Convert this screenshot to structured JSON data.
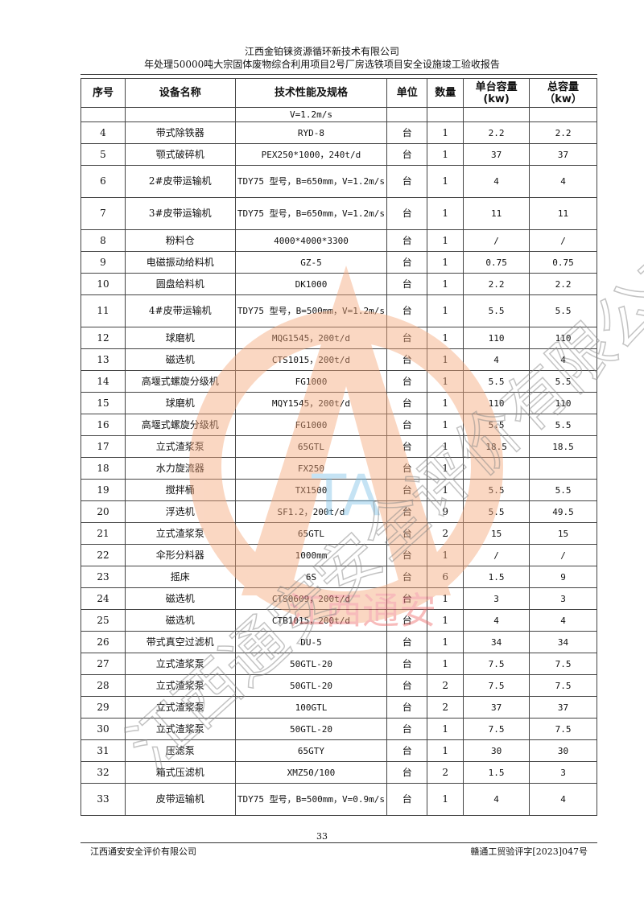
{
  "header": {
    "company": "江西金铂铼资源循环新技术有限公司",
    "report_title": "年处理50000吨大宗固体废物综合利用项目2号厂房选铁项目安全设施竣工验收报告"
  },
  "table": {
    "columns": [
      "序号",
      "设备名称",
      "技术性能及规格",
      "单位",
      "数量",
      "单台容量\n(kw)",
      "总容量\n（kw）"
    ],
    "continued_spec": "V=1.2m/s",
    "rows": [
      [
        "4",
        "带式除铁器",
        "RYD-8",
        "台",
        "1",
        "2.2",
        "2.2"
      ],
      [
        "5",
        "颚式破碎机",
        "PEX250*1000，240t/d",
        "台",
        "1",
        "37",
        "37"
      ],
      [
        "6",
        "2#皮带运输机",
        "TDY75 型号，B=650mm，V=1.2m/s",
        "台",
        "1",
        "4",
        "4"
      ],
      [
        "7",
        "3#皮带运输机",
        "TDY75 型号，B=650mm，V=1.2m/s",
        "台",
        "1",
        "11",
        "11"
      ],
      [
        "8",
        "粉料仓",
        "4000*4000*3300",
        "台",
        "1",
        "/",
        "/"
      ],
      [
        "9",
        "电磁振动给料机",
        "GZ-5",
        "台",
        "1",
        "0.75",
        "0.75"
      ],
      [
        "10",
        "圆盘给料机",
        "DK1000",
        "台",
        "1",
        "2.2",
        "2.2"
      ],
      [
        "11",
        "4#皮带运输机",
        "TDY75 型号，B=500mm，V=1.2m/s",
        "台",
        "1",
        "5.5",
        "5.5"
      ],
      [
        "12",
        "球磨机",
        "MQG1545，200t/d",
        "台",
        "1",
        "110",
        "110"
      ],
      [
        "13",
        "磁选机",
        "CTS1015，200t/d",
        "台",
        "1",
        "4",
        "4"
      ],
      [
        "14",
        "高堰式螺旋分级机",
        "FG1000",
        "台",
        "1",
        "5.5",
        "5.5"
      ],
      [
        "15",
        "球磨机",
        "MQY1545，200t/d",
        "台",
        "1",
        "110",
        "110"
      ],
      [
        "16",
        "高堰式螺旋分级机",
        "FG1000",
        "台",
        "1",
        "5.5",
        "5.5"
      ],
      [
        "17",
        "立式渣浆泵",
        "65GTL",
        "台",
        "1",
        "18.5",
        "18.5"
      ],
      [
        "18",
        "水力旋流器",
        "FX250",
        "台",
        "1",
        "",
        ""
      ],
      [
        "19",
        "搅拌桶",
        "TX1500",
        "台",
        "1",
        "5.5",
        "5.5"
      ],
      [
        "20",
        "浮选机",
        "SF1.2，200t/d",
        "台",
        "9",
        "5.5",
        "49.5"
      ],
      [
        "21",
        "立式渣浆泵",
        "65GTL",
        "台",
        "2",
        "15",
        "15"
      ],
      [
        "22",
        "伞形分料器",
        "1000mm",
        "台",
        "1",
        "/",
        "/"
      ],
      [
        "23",
        "摇床",
        "6S",
        "台",
        "6",
        "1.5",
        "9"
      ],
      [
        "24",
        "磁选机",
        "CTS0609，200t/d",
        "台",
        "1",
        "3",
        "3"
      ],
      [
        "25",
        "磁选机",
        "CTB1015，200t/d",
        "台",
        "1",
        "4",
        "4"
      ],
      [
        "26",
        "带式真空过滤机",
        "DU-5",
        "台",
        "1",
        "34",
        "34"
      ],
      [
        "27",
        "立式渣浆泵",
        "50GTL-20",
        "台",
        "1",
        "7.5",
        "7.5"
      ],
      [
        "28",
        "立式渣浆泵",
        "50GTL-20",
        "台",
        "2",
        "7.5",
        "7.5"
      ],
      [
        "29",
        "立式渣浆泵",
        "100GTL",
        "台",
        "2",
        "37",
        "37"
      ],
      [
        "30",
        "立式渣浆泵",
        "50GTL-20",
        "台",
        "1",
        "7.5",
        "7.5"
      ],
      [
        "31",
        "压滤泵",
        "65GTY",
        "台",
        "1",
        "30",
        "30"
      ],
      [
        "32",
        "箱式压滤机",
        "XMZ50/100",
        "台",
        "2",
        "1.5",
        "3"
      ],
      [
        "33",
        "皮带运输机",
        "TDY75 型号，B=500mm，V=0.9m/s",
        "台",
        "1",
        "4",
        "4"
      ]
    ]
  },
  "watermark": {
    "text": "江西通安安全评价有限公司",
    "logo_text": "江西通安",
    "logo_letters": "TA",
    "color": "#f4a77a"
  },
  "footer": {
    "page_number": "33",
    "left": "江西通安安全评价有限公司",
    "right": "赣通工贸验评字[2023]047号"
  }
}
